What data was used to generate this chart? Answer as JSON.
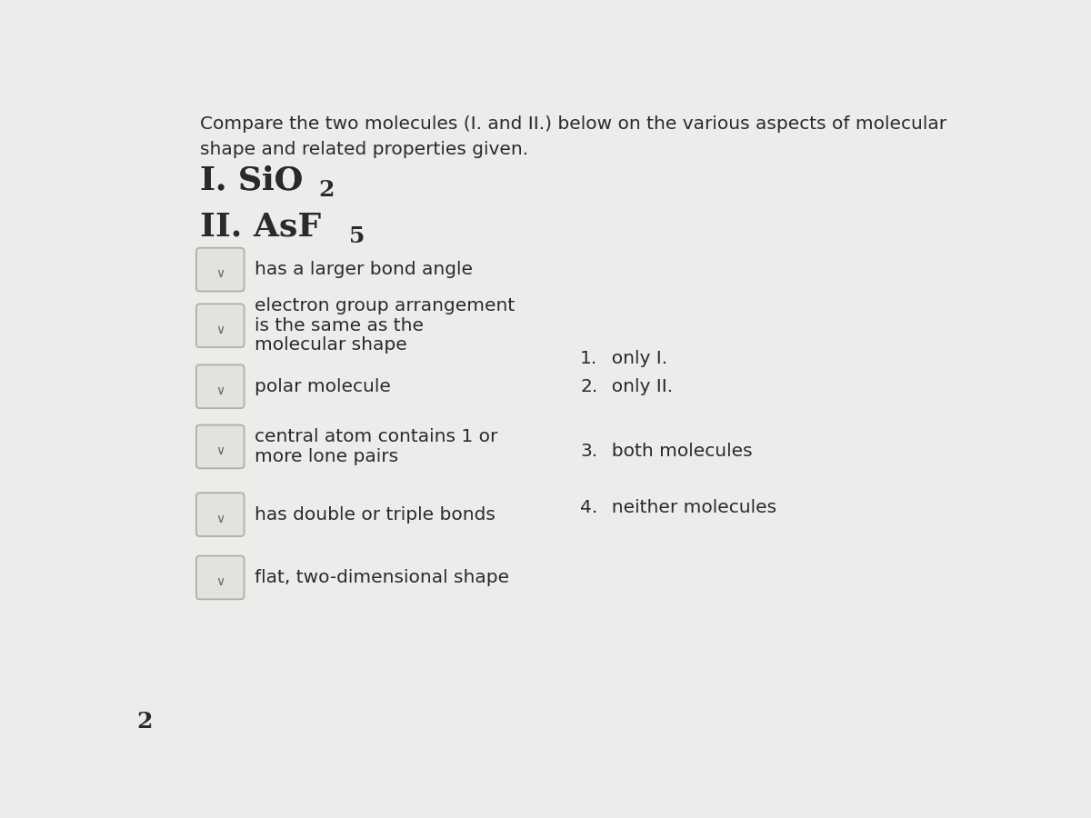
{
  "bg_color": "#edecea",
  "title_text": "Compare the two molecules (I. and II.) below on the various aspects of molecular\nshape and related properties given.",
  "rows": [
    {
      "label": "has a larger bond angle"
    },
    {
      "label": "electron group arrangement\nis the same as the\nmolecular shape"
    },
    {
      "label": "polar molecule"
    },
    {
      "label": "central atom contains 1 or\nmore lone pairs"
    },
    {
      "label": "has double or triple bonds"
    },
    {
      "label": "flat, two-dimensional shape"
    }
  ],
  "answers": [
    {
      "num": "1.",
      "text": "  only I."
    },
    {
      "num": "2.",
      "text": "  only II."
    },
    {
      "num": "3.",
      "text": "  both molecules"
    },
    {
      "num": "4.",
      "text": "  neither molecules"
    }
  ],
  "box_color": "#e4e2df",
  "box_border": "#b0aeab",
  "text_color": "#2a2a2a",
  "chevron_color": "#666666",
  "title_fontsize": 14.5,
  "mol_label_fontsize": 26,
  "mol_sub_fontsize": 18,
  "row_fontsize": 14.5,
  "answer_fontsize": 14.5
}
